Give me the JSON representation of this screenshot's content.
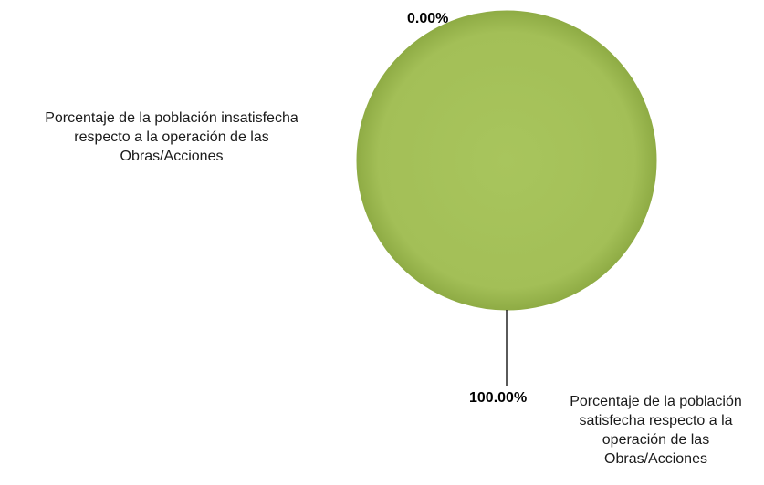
{
  "chart_data": {
    "type": "pie",
    "slices": [
      {
        "label": "Porcentaje de la población insatisfecha respecto a la operación de las Obras/Acciones",
        "label_lines": [
          "Porcentaje de la población insatisfecha",
          "respecto a la operación de las",
          "Obras/Acciones"
        ],
        "value": 0.0,
        "value_label": "0.00%",
        "color": "#a6c25a"
      },
      {
        "label": "Porcentaje de la población satisfecha respecto a la operación de las Obras/Acciones",
        "label_lines": [
          "Porcentaje de la población",
          "satisfecha respecto a la",
          "operación de las",
          "Obras/Acciones"
        ],
        "value": 100.0,
        "value_label": "100.00%",
        "color": "#a6c25a"
      }
    ],
    "legend": "none"
  }
}
